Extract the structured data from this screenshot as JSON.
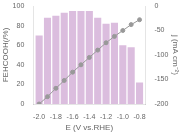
{
  "chart_data": {
    "type": "bar",
    "x": [
      -2.0,
      -1.9,
      -1.8,
      -1.7,
      -1.6,
      -1.5,
      -1.4,
      -1.3,
      -1.2,
      -1.1,
      -1.0,
      -0.9,
      -0.8
    ],
    "xlabel": "E (V vs.RHE)",
    "ylabel": "FEHCOOH(/%)",
    "y2label": "j (mA cm⁻²)",
    "xlim": [
      -2.07,
      -0.73
    ],
    "xticks": [
      {
        "value": -2.0,
        "label": "-2.0"
      },
      {
        "value": -1.8,
        "label": "-1.8"
      },
      {
        "value": -1.6,
        "label": "-1.6"
      },
      {
        "value": -1.4,
        "label": "-1.4"
      },
      {
        "value": -1.2,
        "label": "-1.2"
      },
      {
        "value": -1.0,
        "label": "-1.0"
      },
      {
        "value": -0.8,
        "label": "-0.8"
      }
    ],
    "ylim": [
      0,
      100
    ],
    "yticks": [
      0,
      20,
      40,
      60,
      80,
      100
    ],
    "y2lim": [
      -200,
      0
    ],
    "y2ticks": [
      0,
      -50,
      -100,
      -150,
      -200
    ],
    "grid": false,
    "series": [
      {
        "type": "bar",
        "color": "#dbbdde",
        "values": [
          70,
          88,
          90,
          93,
          95,
          95,
          95,
          88,
          82,
          83,
          60,
          58,
          22
        ]
      },
      {
        "type": "line",
        "axis": "y2",
        "color": "#999999",
        "marker": "circle",
        "values": [
          -200,
          -185,
          -168,
          -152,
          -135,
          -120,
          -105,
          -90,
          -75,
          -62,
          -50,
          -38,
          -28
        ]
      }
    ]
  }
}
